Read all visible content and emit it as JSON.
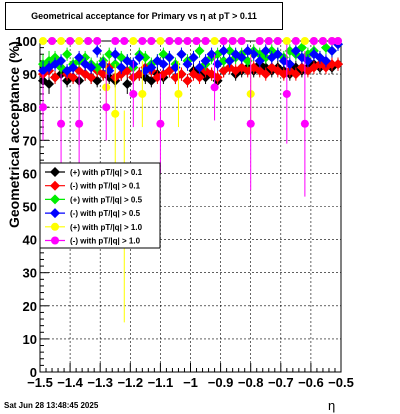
{
  "chart_data": {
    "type": "scatter",
    "title": "Geometrical acceptance for Primary vs   η  at pT > 0.11",
    "xlabel": "η",
    "ylabel": "Geometrical acceptance (%)",
    "xlim": [
      -1.5,
      -0.5
    ],
    "ylim": [
      0,
      100
    ],
    "x_ticks": [
      "−1.5",
      "−1.4",
      "−1.3",
      "−1.2",
      "−1.1",
      "−1",
      "−0.9",
      "−0.8",
      "−0.7",
      "−0.6",
      "−0.5"
    ],
    "y_ticks": [
      "0",
      "10",
      "20",
      "30",
      "40",
      "50",
      "60",
      "70",
      "80",
      "90",
      "100"
    ],
    "grid": true,
    "legend_position": "center-left",
    "series": [
      {
        "name": "(+) with pT/|q| > 0.1",
        "color": "#000000",
        "x": [
          -1.49,
          -1.47,
          -1.45,
          -1.43,
          -1.41,
          -1.39,
          -1.37,
          -1.35,
          -1.33,
          -1.31,
          -1.29,
          -1.27,
          -1.25,
          -1.23,
          -1.21,
          -1.19,
          -1.17,
          -1.15,
          -1.13,
          -1.11,
          -1.09,
          -1.07,
          -1.05,
          -1.03,
          -1.01,
          -0.99,
          -0.97,
          -0.95,
          -0.93,
          -0.91,
          -0.89,
          -0.87,
          -0.85,
          -0.83,
          -0.81,
          -0.79,
          -0.77,
          -0.75,
          -0.73,
          -0.71,
          -0.69,
          -0.67,
          -0.65,
          -0.63,
          -0.61,
          -0.59,
          -0.57,
          -0.55,
          -0.53,
          -0.51
        ],
        "y": [
          88,
          87,
          89,
          90,
          88,
          89,
          88,
          90,
          89,
          88,
          90,
          89,
          88,
          90,
          87,
          89,
          90,
          89,
          88,
          90,
          89,
          91,
          89,
          90,
          88,
          91,
          90,
          89,
          90,
          88,
          91,
          92,
          90,
          91,
          92,
          91,
          93,
          92,
          91,
          92,
          91,
          90,
          92,
          91,
          92,
          93,
          92,
          93,
          92,
          93
        ],
        "err": [
          3,
          3,
          2,
          2,
          2,
          2,
          2,
          2,
          2,
          2,
          2,
          2,
          2,
          2,
          3,
          2,
          2,
          2,
          2,
          2,
          2,
          2,
          2,
          2,
          2,
          2,
          2,
          2,
          2,
          2,
          2,
          2,
          2,
          2,
          2,
          2,
          2,
          2,
          2,
          2,
          2,
          2,
          2,
          2,
          2,
          2,
          2,
          2,
          2,
          2
        ]
      },
      {
        "name": "(-) with pT/|q| > 0.1",
        "color": "#ff0000",
        "x": [
          -1.49,
          -1.47,
          -1.45,
          -1.43,
          -1.41,
          -1.39,
          -1.37,
          -1.35,
          -1.33,
          -1.31,
          -1.29,
          -1.27,
          -1.25,
          -1.23,
          -1.21,
          -1.19,
          -1.17,
          -1.15,
          -1.13,
          -1.11,
          -1.09,
          -1.07,
          -1.05,
          -1.03,
          -1.01,
          -0.99,
          -0.97,
          -0.95,
          -0.93,
          -0.91,
          -0.89,
          -0.87,
          -0.85,
          -0.83,
          -0.81,
          -0.79,
          -0.77,
          -0.75,
          -0.73,
          -0.71,
          -0.69,
          -0.67,
          -0.65,
          -0.63,
          -0.61,
          -0.59,
          -0.57,
          -0.55,
          -0.53,
          -0.51
        ],
        "y": [
          90,
          91,
          89,
          92,
          90,
          89,
          91,
          90,
          89,
          91,
          90,
          92,
          89,
          90,
          91,
          89,
          90,
          92,
          91,
          89,
          90,
          91,
          89,
          90,
          88,
          90,
          89,
          91,
          90,
          89,
          91,
          92,
          91,
          92,
          91,
          92,
          91,
          90,
          92,
          91,
          90,
          91,
          90,
          92,
          91,
          92,
          93,
          92,
          93,
          93
        ],
        "err": [
          3,
          2,
          2,
          2,
          2,
          2,
          2,
          2,
          2,
          2,
          2,
          2,
          2,
          2,
          2,
          2,
          2,
          2,
          2,
          2,
          2,
          2,
          2,
          2,
          2,
          2,
          2,
          2,
          2,
          2,
          2,
          2,
          2,
          2,
          2,
          2,
          2,
          2,
          2,
          2,
          2,
          2,
          2,
          2,
          2,
          2,
          2,
          2,
          2,
          2
        ]
      },
      {
        "name": "(+) with pT/|q| > 0.5",
        "color": "#00ee00",
        "x": [
          -1.49,
          -1.47,
          -1.45,
          -1.43,
          -1.41,
          -1.39,
          -1.37,
          -1.35,
          -1.33,
          -1.31,
          -1.29,
          -1.27,
          -1.25,
          -1.23,
          -1.21,
          -1.19,
          -1.17,
          -1.15,
          -1.13,
          -1.11,
          -1.09,
          -1.07,
          -1.05,
          -1.03,
          -1.01,
          -0.99,
          -0.97,
          -0.95,
          -0.93,
          -0.91,
          -0.89,
          -0.87,
          -0.85,
          -0.83,
          -0.81,
          -0.79,
          -0.77,
          -0.75,
          -0.73,
          -0.71,
          -0.69,
          -0.67,
          -0.65,
          -0.63,
          -0.61,
          -0.59,
          -0.57,
          -0.55,
          -0.53,
          -0.51
        ],
        "y": [
          93,
          94,
          95,
          92,
          96,
          93,
          94,
          95,
          93,
          92,
          94,
          96,
          93,
          95,
          94,
          92,
          96,
          95,
          93,
          94,
          96,
          95,
          93,
          96,
          94,
          95,
          97,
          93,
          95,
          96,
          94,
          97,
          95,
          96,
          94,
          97,
          96,
          95,
          97,
          96,
          95,
          97,
          96,
          98,
          96,
          97,
          95,
          98,
          97,
          99
        ],
        "err": [
          3,
          3,
          2,
          2,
          2,
          2,
          2,
          2,
          2,
          2,
          2,
          2,
          2,
          2,
          2,
          2,
          2,
          2,
          2,
          2,
          2,
          2,
          2,
          2,
          2,
          2,
          2,
          2,
          2,
          2,
          2,
          2,
          2,
          2,
          2,
          2,
          2,
          2,
          2,
          2,
          2,
          2,
          2,
          2,
          2,
          2,
          2,
          2,
          2,
          2
        ]
      },
      {
        "name": "(-) with pT/|q| > 0.5",
        "color": "#0000ff",
        "x": [
          -1.49,
          -1.47,
          -1.45,
          -1.43,
          -1.41,
          -1.39,
          -1.37,
          -1.35,
          -1.33,
          -1.31,
          -1.29,
          -1.27,
          -1.25,
          -1.23,
          -1.21,
          -1.19,
          -1.17,
          -1.15,
          -1.13,
          -1.11,
          -1.09,
          -1.07,
          -1.05,
          -1.03,
          -1.01,
          -0.99,
          -0.97,
          -0.95,
          -0.93,
          -0.91,
          -0.89,
          -0.87,
          -0.85,
          -0.83,
          -0.81,
          -0.79,
          -0.77,
          -0.75,
          -0.73,
          -0.71,
          -0.69,
          -0.67,
          -0.65,
          -0.63,
          -0.61,
          -0.59,
          -0.57,
          -0.55,
          -0.53,
          -0.51
        ],
        "y": [
          91,
          92,
          93,
          94,
          91,
          92,
          95,
          93,
          92,
          97,
          93,
          91,
          96,
          92,
          94,
          93,
          95,
          91,
          92,
          94,
          93,
          95,
          92,
          96,
          93,
          95,
          92,
          94,
          96,
          93,
          97,
          94,
          96,
          95,
          97,
          96,
          94,
          97,
          95,
          96,
          94,
          93,
          97,
          95,
          94,
          96,
          95,
          94,
          97,
          99
        ],
        "err": [
          3,
          2,
          2,
          2,
          2,
          2,
          2,
          2,
          2,
          2,
          2,
          2,
          2,
          2,
          2,
          2,
          2,
          2,
          2,
          2,
          2,
          2,
          2,
          2,
          2,
          2,
          2,
          2,
          2,
          2,
          2,
          2,
          2,
          2,
          2,
          2,
          2,
          2,
          2,
          2,
          2,
          2,
          2,
          2,
          2,
          2,
          2,
          2,
          2,
          2
        ]
      },
      {
        "name": "(+) with pT/|q| > 1.0",
        "color": "#ffff00",
        "x": [
          -1.49,
          -1.46,
          -1.43,
          -1.4,
          -1.37,
          -1.34,
          -1.31,
          -1.28,
          -1.25,
          -1.22,
          -1.19,
          -1.16,
          -1.13,
          -1.1,
          -1.07,
          -1.04,
          -1.01,
          -0.98,
          -0.95,
          -0.92,
          -0.89,
          -0.86,
          -0.83,
          -0.8,
          -0.77,
          -0.74,
          -0.71,
          -0.68,
          -0.65,
          -0.62,
          -0.59,
          -0.56,
          -0.53,
          -0.51
        ],
        "y": [
          100,
          100,
          100,
          100,
          100,
          100,
          100,
          86,
          78,
          47,
          100,
          84,
          100,
          100,
          100,
          84,
          100,
          100,
          100,
          100,
          100,
          100,
          100,
          84,
          100,
          100,
          100,
          100,
          100,
          100,
          100,
          100,
          100,
          100
        ],
        "err": [
          0,
          0,
          0,
          0,
          0,
          0,
          0,
          8,
          15,
          32,
          0,
          10,
          0,
          0,
          0,
          10,
          0,
          0,
          0,
          0,
          0,
          0,
          0,
          12,
          0,
          0,
          0,
          0,
          0,
          0,
          0,
          0,
          0,
          0
        ]
      },
      {
        "name": "(-) with pT/|q| > 1.0",
        "color": "#ff00ff",
        "x": [
          -1.49,
          -1.46,
          -1.43,
          -1.4,
          -1.37,
          -1.34,
          -1.31,
          -1.28,
          -1.25,
          -1.22,
          -1.19,
          -1.16,
          -1.13,
          -1.1,
          -1.07,
          -1.04,
          -1.01,
          -0.98,
          -0.95,
          -0.92,
          -0.89,
          -0.86,
          -0.83,
          -0.8,
          -0.77,
          -0.74,
          -0.71,
          -0.68,
          -0.65,
          -0.62,
          -0.59,
          -0.56,
          -0.53,
          -0.51
        ],
        "y": [
          80,
          100,
          75,
          100,
          75,
          100,
          100,
          80,
          100,
          100,
          84,
          100,
          100,
          75,
          100,
          100,
          100,
          100,
          100,
          86,
          100,
          100,
          100,
          75,
          100,
          100,
          100,
          84,
          100,
          75,
          100,
          100,
          100,
          100
        ],
        "err": [
          10,
          0,
          15,
          0,
          15,
          0,
          0,
          10,
          0,
          0,
          10,
          0,
          0,
          15,
          0,
          0,
          0,
          0,
          0,
          10,
          0,
          0,
          0,
          20,
          0,
          0,
          0,
          15,
          0,
          22,
          0,
          0,
          0,
          0
        ]
      }
    ]
  },
  "footer": "Sat Jun 28 13:48:45 2025"
}
